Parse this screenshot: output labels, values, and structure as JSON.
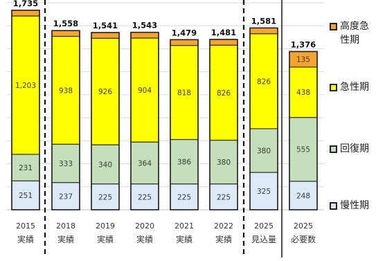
{
  "chart_data": {
    "type": "bar",
    "stacked": true,
    "title": "",
    "xlabel": "",
    "ylabel": "",
    "ylim": [
      0,
      1800
    ],
    "grid": true,
    "legend_position": "right",
    "categories": [
      [
        "2015",
        "実績"
      ],
      [
        "2018",
        "実績"
      ],
      [
        "2019",
        "実績"
      ],
      [
        "2020",
        "実績"
      ],
      [
        "2021",
        "実績"
      ],
      [
        "2022",
        "実績"
      ],
      [
        "2025",
        "見込量"
      ],
      [
        "2025",
        "必要数"
      ]
    ],
    "series": [
      {
        "name": "慢性期",
        "color": "#dce9f6",
        "values": [
          251,
          237,
          225,
          225,
          225,
          225,
          325,
          248
        ]
      },
      {
        "name": "回復期",
        "color": "#c4dfba",
        "values": [
          231,
          333,
          340,
          364,
          386,
          380,
          380,
          555
        ]
      },
      {
        "name": "急性期",
        "color": "#ffff00",
        "values": [
          1203,
          938,
          926,
          904,
          818,
          826,
          826,
          438
        ]
      },
      {
        "name": "高度急性期",
        "color": "#f5a431",
        "values": [
          50,
          50,
          50,
          50,
          50,
          50,
          50,
          135
        ]
      }
    ],
    "segment_labels": [
      [
        "251",
        "231",
        "1,203",
        ""
      ],
      [
        "237",
        "333",
        "938",
        ""
      ],
      [
        "225",
        "340",
        "926",
        ""
      ],
      [
        "225",
        "364",
        "904",
        ""
      ],
      [
        "225",
        "386",
        "818",
        ""
      ],
      [
        "225",
        "380",
        "826",
        ""
      ],
      [
        "325",
        "380",
        "826",
        ""
      ],
      [
        "248",
        "555",
        "438",
        "135"
      ]
    ],
    "totals": [
      "1,735",
      "1,558",
      "1,541",
      "1,543",
      "1,479",
      "1,481",
      "1,581",
      "1,376"
    ]
  }
}
